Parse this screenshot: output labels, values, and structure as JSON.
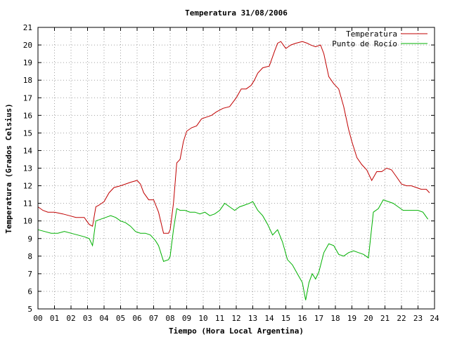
{
  "chart_data": {
    "type": "line",
    "title": "Temperatura 31/08/2006",
    "xlabel": "Tiempo (Hora Local Argentina)",
    "ylabel": "Temperatura (Grados Celsius)",
    "xlim": [
      0,
      24
    ],
    "ylim": [
      5,
      21
    ],
    "x_ticks": [
      "00",
      "01",
      "02",
      "03",
      "04",
      "05",
      "06",
      "07",
      "08",
      "09",
      "10",
      "11",
      "12",
      "13",
      "14",
      "15",
      "16",
      "17",
      "18",
      "19",
      "20",
      "21",
      "22",
      "23",
      "24"
    ],
    "y_ticks": [
      5,
      6,
      7,
      8,
      9,
      10,
      11,
      12,
      13,
      14,
      15,
      16,
      17,
      18,
      19,
      20,
      21
    ],
    "grid": true,
    "legend_position": "top-right",
    "series": [
      {
        "name": "Temperatura",
        "color": "#c00000",
        "x": [
          0,
          0.3,
          0.6,
          1.0,
          1.5,
          1.9,
          2.3,
          2.8,
          3.1,
          3.3,
          3.5,
          3.7,
          4.0,
          4.3,
          4.6,
          5.0,
          5.3,
          5.6,
          6.0,
          6.2,
          6.4,
          6.7,
          7.0,
          7.3,
          7.6,
          7.9,
          8.0,
          8.2,
          8.4,
          8.6,
          8.8,
          9.0,
          9.3,
          9.6,
          9.9,
          10.2,
          10.5,
          10.8,
          11.2,
          11.6,
          12.0,
          12.3,
          12.6,
          12.9,
          13.1,
          13.3,
          13.6,
          14.0,
          14.3,
          14.5,
          14.7,
          15.0,
          15.3,
          15.6,
          16.0,
          16.3,
          16.5,
          16.8,
          17.1,
          17.3,
          17.6,
          17.9,
          18.2,
          18.5,
          18.8,
          19.0,
          19.3,
          19.6,
          19.9,
          20.2,
          20.5,
          20.8,
          21.1,
          21.4,
          21.7,
          22.0,
          22.3,
          22.6,
          22.9,
          23.2,
          23.5,
          23.7
        ],
        "y": [
          10.8,
          10.6,
          10.5,
          10.5,
          10.4,
          10.3,
          10.2,
          10.2,
          9.8,
          9.7,
          10.8,
          10.9,
          11.1,
          11.6,
          11.9,
          12.0,
          12.1,
          12.2,
          12.3,
          12.1,
          11.6,
          11.2,
          11.2,
          10.5,
          9.3,
          9.3,
          9.5,
          11.0,
          13.3,
          13.5,
          14.5,
          15.1,
          15.3,
          15.4,
          15.8,
          15.9,
          16.0,
          16.2,
          16.4,
          16.5,
          17.0,
          17.5,
          17.5,
          17.7,
          18.0,
          18.4,
          18.7,
          18.8,
          19.6,
          20.1,
          20.2,
          19.8,
          20.0,
          20.1,
          20.2,
          20.1,
          20.0,
          19.9,
          20.0,
          19.5,
          18.2,
          17.8,
          17.5,
          16.5,
          15.2,
          14.5,
          13.6,
          13.2,
          12.9,
          12.3,
          12.8,
          12.8,
          13.0,
          12.9,
          12.5,
          12.1,
          12.0,
          12.0,
          11.9,
          11.8,
          11.8,
          11.6
        ]
      },
      {
        "name": "Punto de Rocío",
        "color": "#00b000",
        "x": [
          0,
          0.4,
          0.8,
          1.2,
          1.6,
          2.0,
          2.4,
          2.8,
          3.1,
          3.3,
          3.5,
          3.8,
          4.1,
          4.4,
          4.7,
          5.0,
          5.3,
          5.6,
          5.9,
          6.2,
          6.5,
          6.8,
          7.1,
          7.3,
          7.6,
          7.9,
          8.0,
          8.2,
          8.4,
          8.6,
          8.9,
          9.2,
          9.5,
          9.8,
          10.1,
          10.4,
          10.7,
          11.0,
          11.3,
          11.6,
          11.9,
          12.2,
          12.5,
          12.8,
          13.0,
          13.3,
          13.6,
          13.9,
          14.2,
          14.5,
          14.8,
          15.1,
          15.4,
          15.7,
          16.0,
          16.2,
          16.4,
          16.6,
          16.8,
          17.0,
          17.3,
          17.6,
          17.9,
          18.2,
          18.5,
          18.8,
          19.1,
          19.4,
          19.7,
          20.0,
          20.3,
          20.6,
          20.9,
          21.2,
          21.5,
          21.8,
          22.1,
          22.4,
          22.7,
          23.0,
          23.3,
          23.6
        ],
        "y": [
          9.5,
          9.4,
          9.3,
          9.3,
          9.4,
          9.3,
          9.2,
          9.1,
          9.0,
          8.6,
          10.0,
          10.1,
          10.2,
          10.3,
          10.2,
          10.0,
          9.9,
          9.7,
          9.4,
          9.3,
          9.3,
          9.2,
          8.9,
          8.6,
          7.7,
          7.8,
          8.0,
          9.5,
          10.7,
          10.6,
          10.6,
          10.5,
          10.5,
          10.4,
          10.5,
          10.3,
          10.4,
          10.6,
          11.0,
          10.8,
          10.6,
          10.8,
          10.9,
          11.0,
          11.1,
          10.6,
          10.3,
          9.8,
          9.2,
          9.5,
          8.8,
          7.8,
          7.5,
          7.0,
          6.5,
          5.5,
          6.5,
          7.0,
          6.7,
          7.1,
          8.2,
          8.7,
          8.6,
          8.1,
          8.0,
          8.2,
          8.3,
          8.2,
          8.1,
          7.9,
          10.5,
          10.7,
          11.2,
          11.1,
          11.0,
          10.8,
          10.6,
          10.6,
          10.6,
          10.6,
          10.5,
          10.1
        ]
      }
    ]
  }
}
